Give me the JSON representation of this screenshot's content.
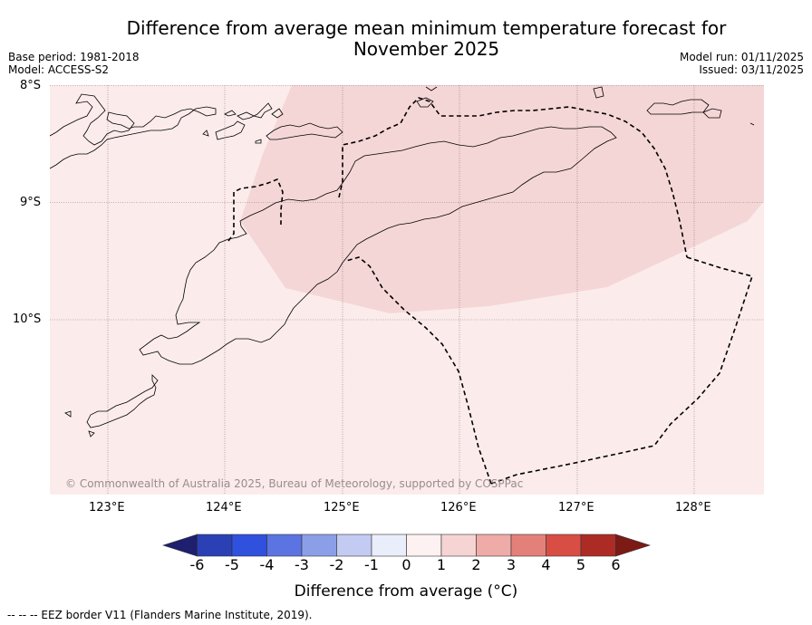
{
  "title": {
    "line1": "Difference from average mean minimum temperature forecast for",
    "line2": "November 2025"
  },
  "meta": {
    "base_period": "Base period: 1981-2018",
    "model": "Model: ACCESS-S2",
    "model_run": "Model run: 01/11/2025",
    "issued": "Issued: 03/11/2025"
  },
  "map": {
    "lat_ticks": [
      "8°S",
      "9°S",
      "10°S"
    ],
    "lon_ticks": [
      "123°E",
      "124°E",
      "125°E",
      "126°E",
      "127°E",
      "128°E"
    ],
    "copyright": "© Commonwealth of Australia 2025, Bureau of Meteorology, supported by COSPPac",
    "colors": {
      "anomaly_0_1": "#fbeceb",
      "anomaly_1_2": "#f5d6d6",
      "coastline": "#000000",
      "eez": "#000000",
      "gridline": "#8c6e6e"
    }
  },
  "colorbar": {
    "ticks": [
      "-6",
      "-5",
      "-4",
      "-3",
      "-2",
      "-1",
      "0",
      "1",
      "2",
      "3",
      "4",
      "5",
      "6"
    ],
    "colors": [
      "#1e1f6e",
      "#2a40b4",
      "#3050de",
      "#5c74e2",
      "#8b9fe8",
      "#c3cbf3",
      "#eaedfa",
      "#fdf1f1",
      "#f5d4d3",
      "#eeaba8",
      "#e4807a",
      "#d84e44",
      "#ac2c25",
      "#7c1a16"
    ],
    "label": "Difference from average (°C)"
  },
  "footer": "-- -- -- EEZ border V11 (Flanders Marine Institute, 2019)."
}
